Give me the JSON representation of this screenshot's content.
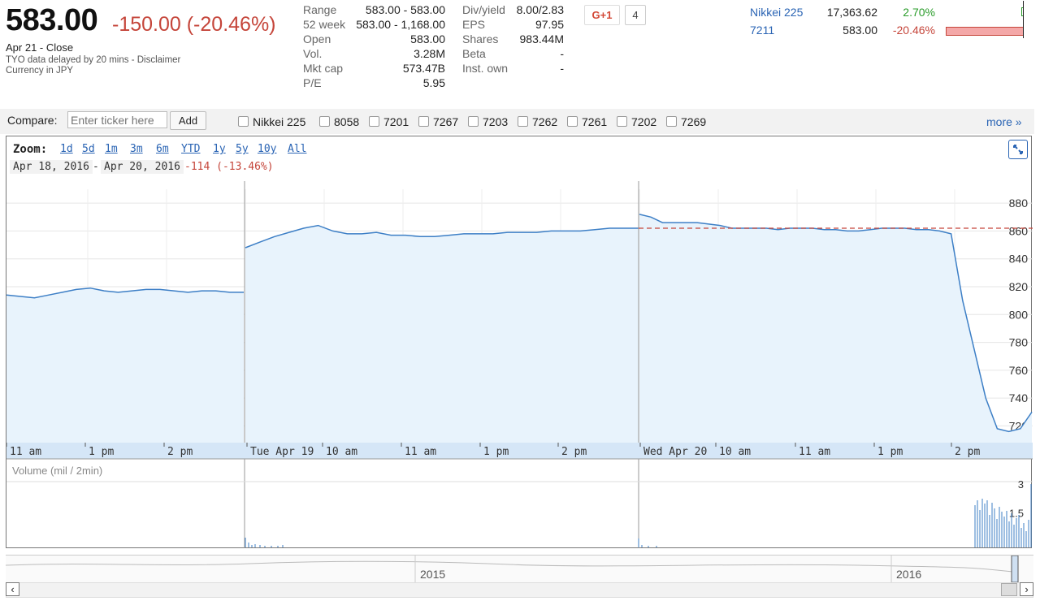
{
  "quote": {
    "price": "583.00",
    "change": "-150.00 (-20.46%)",
    "close_label": "Apr 21 - Close",
    "delay_note": "TYO data delayed by 20 mins - Disclaimer",
    "currency_note": "Currency in JPY"
  },
  "stats_col1": [
    {
      "label": "Range",
      "value": "583.00 - 583.00"
    },
    {
      "label": "52 week",
      "value": "583.00 - 1,168.00"
    },
    {
      "label": "Open",
      "value": "583.00"
    },
    {
      "label": "Vol.",
      "value": "3.28M"
    },
    {
      "label": "Mkt cap",
      "value": "573.47B"
    },
    {
      "label": "P/E",
      "value": "5.95"
    }
  ],
  "stats_col2": [
    {
      "label": "Div/yield",
      "value": "8.00/2.83"
    },
    {
      "label": "EPS",
      "value": "97.95"
    },
    {
      "label": "Shares",
      "value": "983.44M"
    },
    {
      "label": "Beta",
      "value": "-"
    },
    {
      "label": "Inst. own",
      "value": "-"
    }
  ],
  "social": {
    "plus_label": "G+1",
    "count": "4"
  },
  "markets": [
    {
      "name": "Nikkei 225",
      "value": "17,363.62",
      "change": "2.70%",
      "change_color": "#2a9c2a",
      "bar_fraction": 0.03
    },
    {
      "name": "7211",
      "value": "583.00",
      "change": "-20.46%",
      "change_color": "#c5453a",
      "bar_fraction": 0.99
    }
  ],
  "compare": {
    "label": "Compare:",
    "placeholder": "Enter ticker here",
    "add_label": "Add",
    "tickers": [
      "Nikkei 225",
      "8058",
      "7201",
      "7267",
      "7203",
      "7262",
      "7261",
      "7202",
      "7269"
    ],
    "more_label": "more »"
  },
  "zoom": {
    "label": "Zoom:",
    "options": [
      "1d",
      "5d",
      "1m",
      "3m",
      "6m",
      "YTD",
      "1y",
      "5y",
      "10y",
      "All"
    ],
    "from_date": "Apr 18, 2016",
    "separator": "-",
    "to_date": "Apr 20, 2016",
    "range_change": "-114 (-13.46%)"
  },
  "volume": {
    "label": "Volume (mil / 2min)",
    "ticks": [
      "3",
      "1.5"
    ]
  },
  "navigator": {
    "year_labels": [
      "2015",
      "2016"
    ]
  },
  "chart_data": {
    "type": "area",
    "yticks": [
      880,
      860,
      840,
      820,
      800,
      780,
      760,
      740,
      720
    ],
    "ylim": [
      708,
      890
    ],
    "reference_line": 862,
    "xlabels": [
      "11 am",
      "1 pm",
      "2 pm",
      "Tue Apr 19",
      "10 am",
      "11 am",
      "1 pm",
      "2 pm",
      "Wed Apr 20",
      "10 am",
      "11 am",
      "1 pm",
      "2 pm"
    ],
    "sessions": [
      {
        "day": "Apr 18",
        "values": [
          814,
          813,
          812,
          814,
          816,
          818,
          819,
          817,
          816,
          817,
          818,
          818,
          817,
          816,
          817,
          817,
          816,
          816
        ]
      },
      {
        "day": "Apr 19",
        "values": [
          848,
          852,
          856,
          859,
          862,
          864,
          860,
          858,
          858,
          859,
          857,
          857,
          856,
          856,
          857,
          858,
          858,
          858,
          859,
          859,
          859,
          860,
          860,
          860,
          861,
          862,
          862,
          862
        ]
      },
      {
        "day": "Apr 20",
        "values": [
          872,
          870,
          866,
          866,
          866,
          866,
          865,
          864,
          862,
          862,
          862,
          862,
          861,
          862,
          862,
          862,
          861,
          861,
          860,
          860,
          861,
          862,
          862,
          862,
          861,
          861,
          860,
          858,
          810,
          775,
          740,
          718,
          716,
          718,
          730
        ]
      }
    ],
    "volume_max": 3
  }
}
